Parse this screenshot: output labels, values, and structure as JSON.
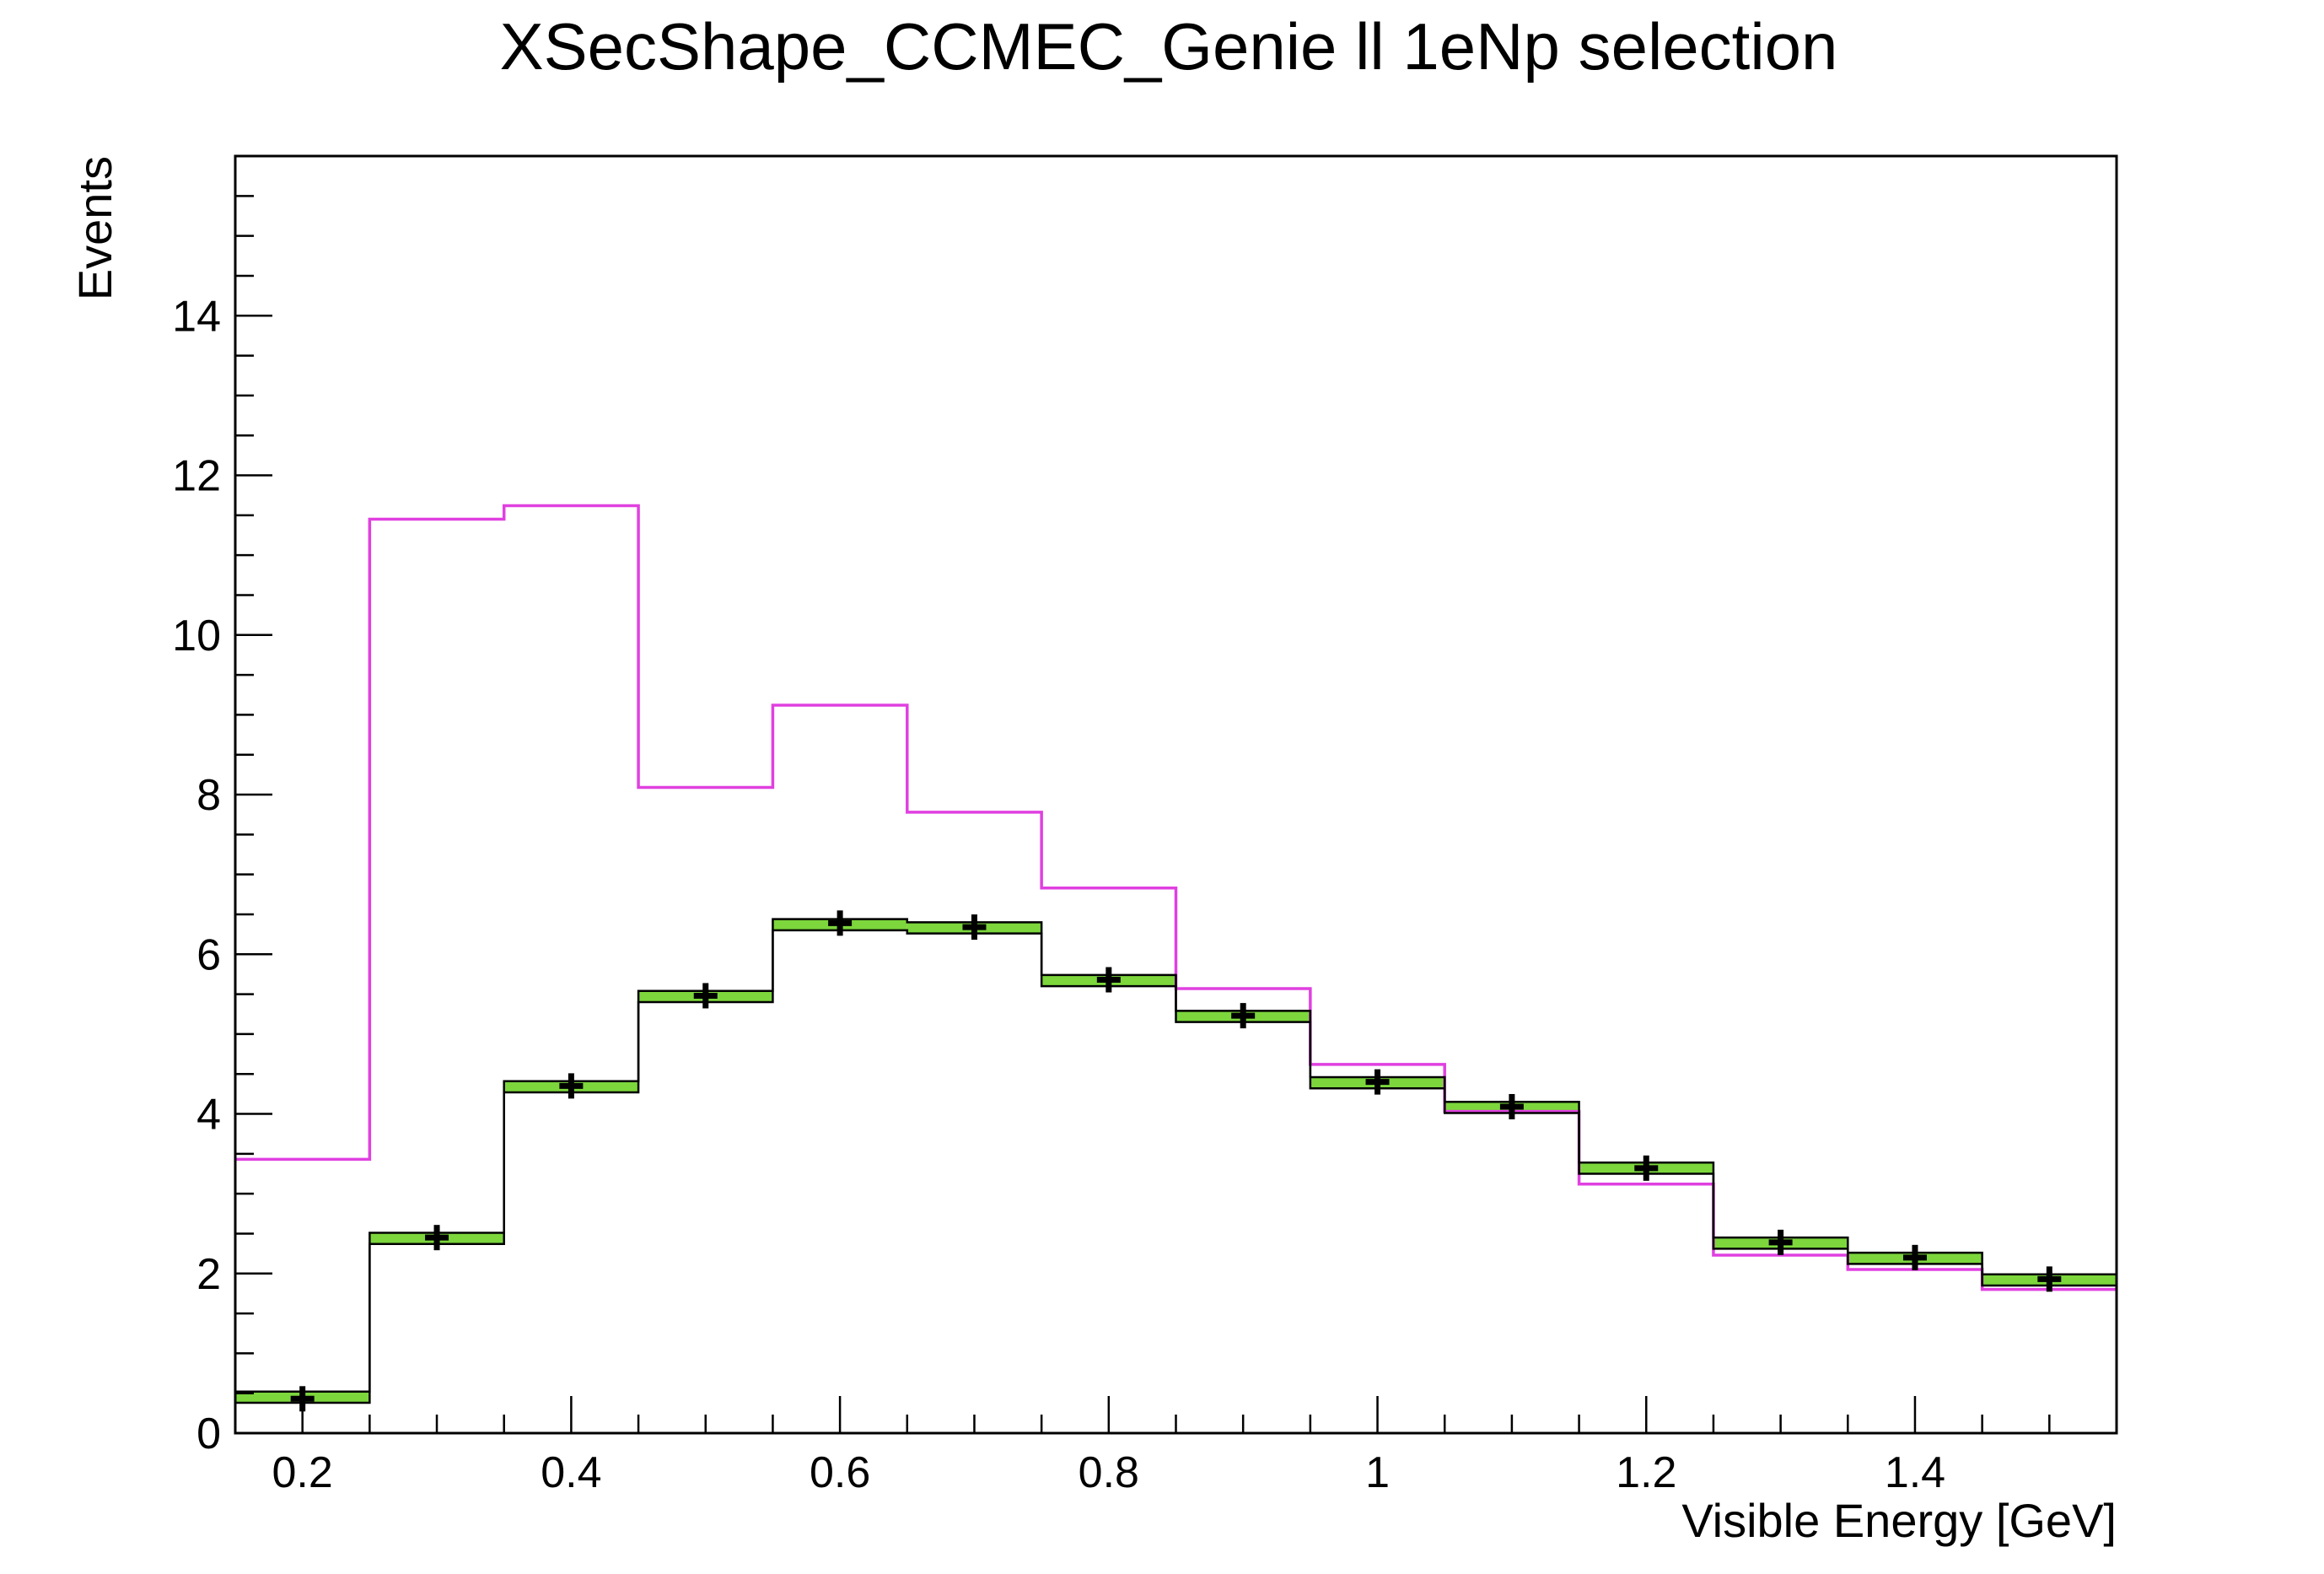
{
  "chart_data": {
    "type": "histogram",
    "title": "XSecShape_CCMEC_Genie ll 1eNp selection",
    "xlabel": "Visible Energy [GeV]",
    "ylabel": "Events",
    "xlim": [
      0.15,
      1.55
    ],
    "ylim": [
      0,
      16
    ],
    "x_ticks": [
      "0.2",
      "0.4",
      "0.6",
      "0.8",
      "1",
      "1.2",
      "1.4"
    ],
    "y_ticks": [
      "0",
      "2",
      "4",
      "6",
      "8",
      "10",
      "12",
      "14"
    ],
    "bin_edges": [
      0.15,
      0.25,
      0.35,
      0.45,
      0.55,
      0.65,
      0.75,
      0.85,
      0.95,
      1.05,
      1.15,
      1.25,
      1.35,
      1.45,
      1.55
    ],
    "bin_centers": [
      0.2,
      0.3,
      0.4,
      0.5,
      0.6,
      0.7,
      0.8,
      0.9,
      1.0,
      1.1,
      1.2,
      1.3,
      1.4,
      1.5
    ],
    "series": [
      {
        "style": "magenta-step",
        "color": "#e040e0",
        "values": [
          3.43,
          11.45,
          11.62,
          8.09,
          9.12,
          7.78,
          6.83,
          5.57,
          4.62,
          4.03,
          3.12,
          2.23,
          2.05,
          1.8
        ]
      },
      {
        "style": "black-green-band-step",
        "color": "#000000",
        "band_color": "#7cd63c",
        "values": [
          0.45,
          2.44,
          4.34,
          5.47,
          6.37,
          6.33,
          5.67,
          5.22,
          4.39,
          4.08,
          3.32,
          2.38,
          2.19,
          1.92
        ],
        "band_half_width": 0.07
      },
      {
        "style": "black-cross-points",
        "color": "#000000",
        "values": [
          0.43,
          2.45,
          4.35,
          5.48,
          6.39,
          6.34,
          5.68,
          5.23,
          4.4,
          4.09,
          3.32,
          2.39,
          2.2,
          1.93
        ]
      }
    ]
  }
}
